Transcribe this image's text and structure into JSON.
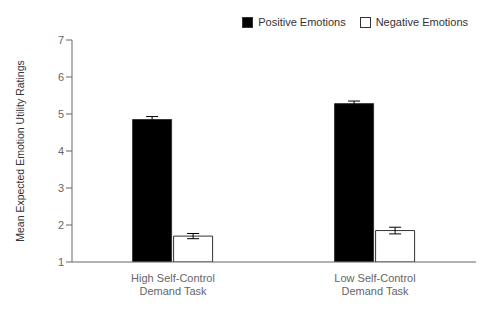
{
  "chart_data": {
    "type": "bar",
    "categories": [
      "High Self-Control\nDemand Task",
      "Low Self-Control\nDemand Task"
    ],
    "series": [
      {
        "name": "Positive Emotions",
        "color": "#000000",
        "values": [
          4.85,
          5.28
        ],
        "errors": [
          0.08,
          0.07
        ]
      },
      {
        "name": "Negative Emotions",
        "color": "#ffffff",
        "values": [
          1.7,
          1.85
        ],
        "errors": [
          0.07,
          0.09
        ]
      }
    ],
    "ylabel": "Mean Expected Emotion Utility Ratings",
    "ylim": [
      1,
      7
    ],
    "yticks": [
      1,
      2,
      3,
      4,
      5,
      6,
      7
    ],
    "legend": "upper right",
    "grid": false
  }
}
